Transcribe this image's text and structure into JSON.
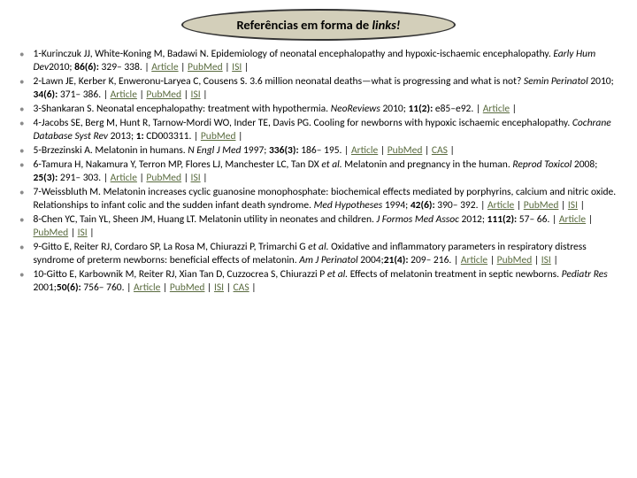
{
  "title": {
    "prefix": "Referências em forma de ",
    "italic": "links!"
  },
  "colors": {
    "banner_bg": "#d3cfba",
    "banner_border": "#333333",
    "link": "#5a6b3f",
    "bullet": "#8b8b8b",
    "text": "#000000",
    "background": "#ffffff"
  },
  "link_labels": {
    "article": "Article",
    "pubmed": "PubMed",
    "isi": "ISI",
    "cas": "CAS"
  },
  "references": [
    {
      "num": "1",
      "authors": "Kurinczuk JJ, White-Koning M, Badawi N.",
      "title_plain": "Epidemiology of neonatal encephalopathy and hypoxic-ischaemic encephalopathy.",
      "journal": "Early Hum Dev",
      "year_issue": "2010; ",
      "volume": "86(6):",
      "pages": " 329– 338.",
      "links": [
        "article",
        "pubmed",
        "isi"
      ]
    },
    {
      "num": "2",
      "authors": "Lawn JE, Kerber K, Enweronu-Laryea C, Cousens S.",
      "title_plain": "3.6 million neonatal deaths—what is progressing and what is not?",
      "journal": "Semin Perinatol",
      "year_issue": " 2010; ",
      "volume": "34(6):",
      "pages": " 371– 386.",
      "links": [
        "article",
        "pubmed",
        "isi"
      ]
    },
    {
      "num": "3",
      "authors": "Shankaran S.",
      "title_plain": "Neonatal encephalopathy: treatment with hypothermia.",
      "journal": "NeoReviews",
      "year_issue": " 2010; ",
      "volume": "11(2):",
      "pages": " e85–e92.",
      "links": [
        "article"
      ]
    },
    {
      "num": "4",
      "authors": "Jacobs SE, Berg M, Hunt R, Tarnow-Mordi WO, Inder TE, Davis PG.",
      "title_plain": "Cooling for newborns with hypoxic ischaemic encephalopathy.",
      "journal": "Cochrane Database Syst Rev",
      "year_issue": " 2013; ",
      "volume": "1:",
      "pages": " CD003311.",
      "links": [
        "pubmed"
      ]
    },
    {
      "num": "5",
      "authors": "Brzezinski A.",
      "title_plain": "Melatonin in humans.",
      "journal": "N Engl J Med",
      "year_issue": " 1997; ",
      "volume": "336(3):",
      "pages": " 186– 195.",
      "links": [
        "article",
        "pubmed",
        "cas"
      ]
    },
    {
      "num": "6",
      "authors": "Tamura H, Nakamura Y, Terron MP, Flores LJ, Manchester LC, Tan DX",
      "etal": " et al.",
      "title_plain": " Melatonin and pregnancy in the human.",
      "journal": "Reprod Toxicol",
      "year_issue": " 2008; ",
      "volume": "25(3):",
      "pages": " 291– 303.",
      "links": [
        "article",
        "pubmed",
        "isi"
      ]
    },
    {
      "num": "7",
      "authors": "Weissbluth M.",
      "title_plain": "Melatonin increases cyclic guanosine monophosphate: biochemical effects mediated by porphyrins, calcium and nitric oxide. Relationships to infant colic and the sudden infant death syndrome.",
      "journal": "Med Hypotheses",
      "year_issue": " 1994; ",
      "volume": "42(6):",
      "pages": " 390– 392.",
      "links": [
        "article",
        "pubmed",
        "isi"
      ]
    },
    {
      "num": "8",
      "authors": "Chen YC, Tain YL, Sheen JM, Huang LT.",
      "title_plain": "Melatonin utility in neonates and children.",
      "journal": "J Formos Med Assoc",
      "year_issue": " 2012; ",
      "volume": "111(2):",
      "pages": " 57– 66.",
      "links": [
        "article",
        "pubmed",
        "isi"
      ]
    },
    {
      "num": "9",
      "authors": "Gitto E, Reiter RJ, Cordaro SP, La Rosa M, Chiurazzi P, Trimarchi G",
      "etal": " et al.",
      "title_plain": " Oxidative and inflammatory parameters in respiratory distress syndrome of preterm newborns: beneficial effects of melatonin.",
      "journal": "Am J Perinatol",
      "year_issue": " 2004;",
      "volume": "21(4):",
      "pages": " 209– 216.",
      "links": [
        "article",
        "pubmed",
        "isi"
      ]
    },
    {
      "num": "10",
      "authors": "Gitto E, Karbownik M, Reiter RJ, Xian Tan D, Cuzzocrea S, Chiurazzi P",
      "etal": " et al.",
      "title_plain": " Effects of melatonin treatment in septic newborns.",
      "journal": "Pediatr Res",
      "year_issue": " 2001;",
      "volume": "50(6):",
      "pages": " 756– 760.",
      "links": [
        "article",
        "pubmed",
        "isi",
        "cas"
      ]
    }
  ]
}
